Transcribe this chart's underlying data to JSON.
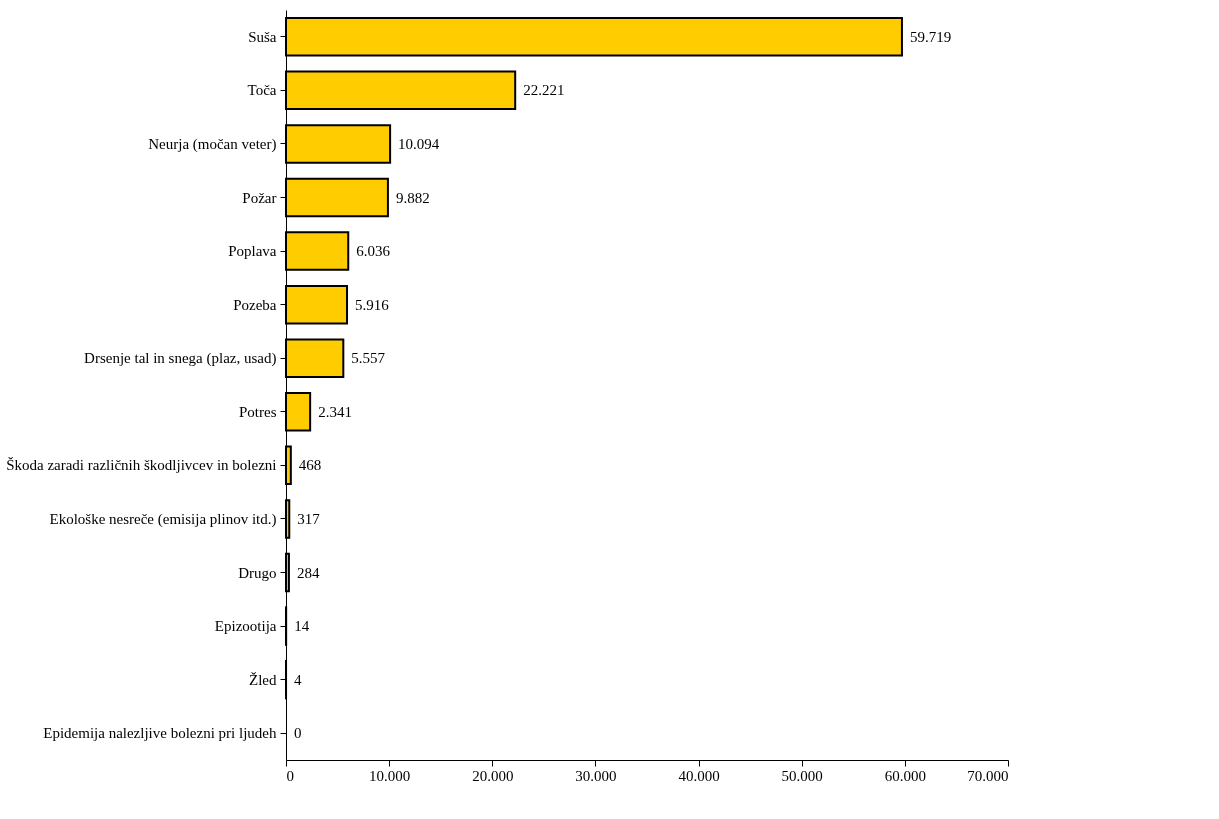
{
  "chart_data": {
    "type": "bar",
    "orientation": "horizontal",
    "categories": [
      "Suša",
      "Toča",
      "Neurja (močan veter)",
      "Požar",
      "Poplava",
      "Pozeba",
      "Drsenje tal in snega (plaz, usad)",
      "Potres",
      "Škoda zaradi različnih škodljivcev in bolezni",
      "Ekološke nesreče (emisija plinov itd.)",
      "Drugo",
      "Epizootija",
      "Žled",
      "Epidemija nalezljive bolezni pri ljudeh"
    ],
    "values": [
      59719,
      22221,
      10094,
      9882,
      6036,
      5916,
      5557,
      2341,
      468,
      317,
      284,
      14,
      4,
      0
    ],
    "value_labels": [
      "59.719",
      "22.221",
      "10.094",
      "9.882",
      "6.036",
      "5.916",
      "5.557",
      "2.341",
      "468",
      "317",
      "284",
      "14",
      "4",
      "0"
    ],
    "color": "#ffcc00",
    "xlim": [
      0,
      70000
    ],
    "xticks": [
      0,
      {
        "value": 10000,
        "label": "10.000"
      },
      {
        "value": 20000,
        "label": "20.000"
      },
      {
        "value": 30000,
        "label": "30.000"
      },
      {
        "value": 40000,
        "label": "40.000"
      },
      {
        "value": 50000,
        "label": "50.000"
      },
      {
        "value": 60000,
        "label": "60.000"
      },
      {
        "value": 70000,
        "label": "70.000"
      }
    ],
    "grid": false
  }
}
